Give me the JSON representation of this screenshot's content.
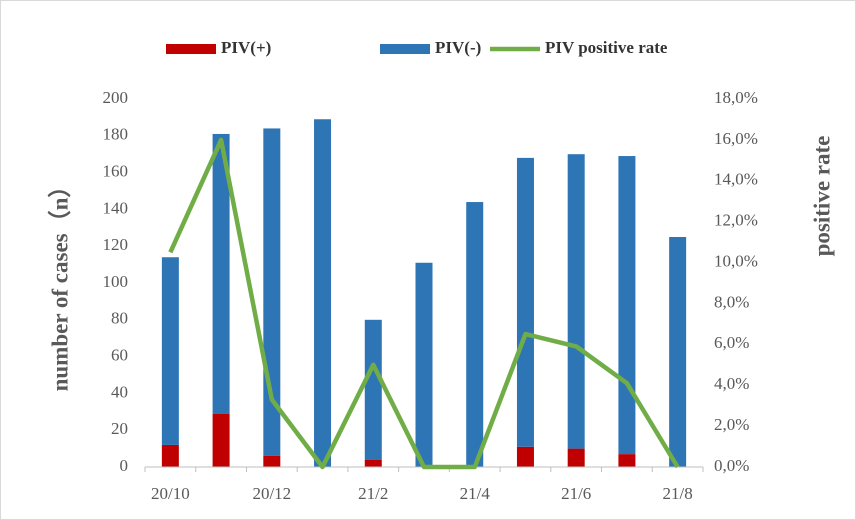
{
  "chart_data": {
    "type": "bar",
    "categories": [
      "20/10",
      null,
      "20/12",
      null,
      "21/2",
      null,
      "21/4",
      null,
      "21/6",
      null,
      "21/8"
    ],
    "ylabel": "number of cases（n）",
    "y2label": "positive rate",
    "ylim": [
      0,
      200
    ],
    "yticks": [
      0,
      20,
      40,
      60,
      80,
      100,
      120,
      140,
      160,
      180,
      200
    ],
    "y2lim": [
      0,
      18
    ],
    "y2ticks": [
      {
        "value": 0,
        "label": "0,0%"
      },
      {
        "value": 2,
        "label": "2,0%"
      },
      {
        "value": 4,
        "label": "4,0%"
      },
      {
        "value": 6,
        "label": "6,0%"
      },
      {
        "value": 8,
        "label": "8,0%"
      },
      {
        "value": 10,
        "label": "10,0%"
      },
      {
        "value": 12,
        "label": "12,0%"
      },
      {
        "value": 14,
        "label": "14,0%"
      },
      {
        "value": 16,
        "label": "16,0%"
      },
      {
        "value": 18,
        "label": "18,0%"
      }
    ],
    "stacked": true,
    "series": [
      {
        "name": "PIV(+)",
        "color": "#c00000",
        "values": [
          12,
          29,
          6,
          0,
          4,
          0,
          0,
          11,
          10,
          7,
          0
        ]
      },
      {
        "name": "PIV(-)",
        "color": "#2e75b6",
        "values": [
          102,
          152,
          178,
          189,
          76,
          111,
          144,
          157,
          160,
          162,
          125
        ]
      },
      {
        "name": "PIV positive rate",
        "color": "#70ad47",
        "type": "line",
        "axis": "y2",
        "values": [
          10.5,
          16.0,
          3.3,
          0,
          5.0,
          0,
          0,
          6.5,
          5.9,
          4.1,
          0
        ]
      }
    ],
    "legend": "top"
  }
}
